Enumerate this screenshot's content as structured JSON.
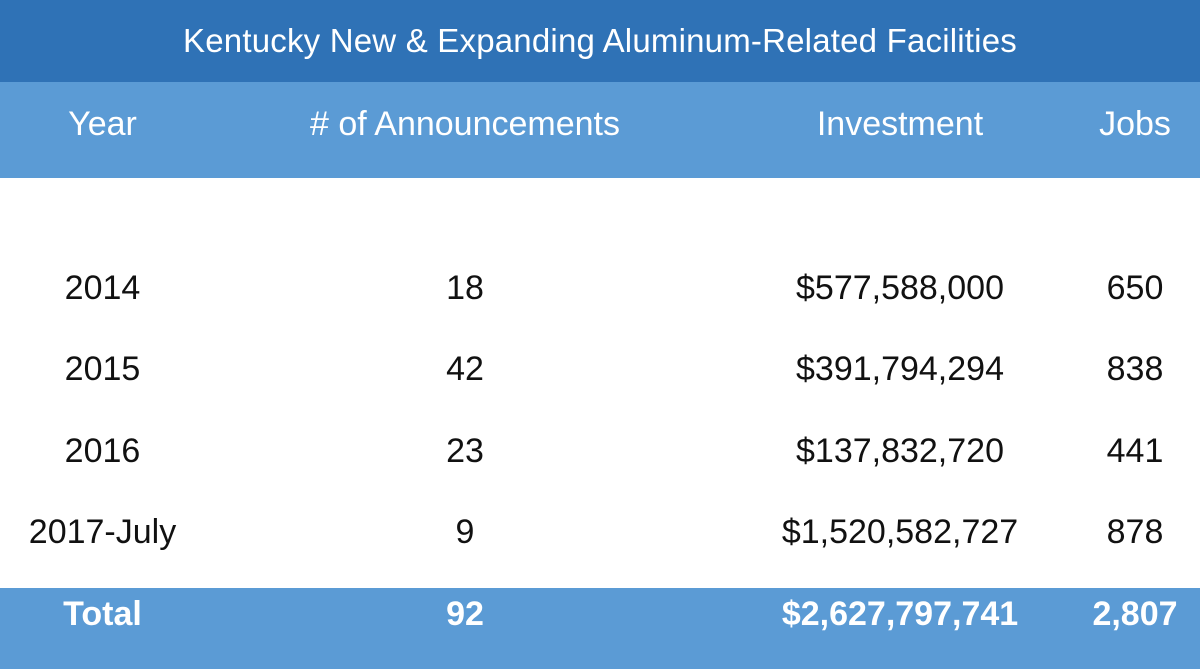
{
  "title": "Kentucky New & Expanding Aluminum-Related Facilities",
  "columns": {
    "year": "Year",
    "announcements": "# of Announcements",
    "investment": "Investment",
    "jobs": "Jobs"
  },
  "rows": [
    {
      "year": "2014",
      "announcements": "18",
      "investment": "$577,588,000",
      "jobs": "650"
    },
    {
      "year": "2015",
      "announcements": "42",
      "investment": "$391,794,294",
      "jobs": "838"
    },
    {
      "year": "2016",
      "announcements": "23",
      "investment": "$137,832,720",
      "jobs": "441"
    },
    {
      "year": "2017-July",
      "announcements": "9",
      "investment": "$1,520,582,727",
      "jobs": "878"
    }
  ],
  "total": {
    "label": "Total",
    "announcements": "92",
    "investment": "$2,627,797,741",
    "jobs": "2,807"
  },
  "colors": {
    "title_bar": "#2f72b6",
    "header_band": "#5b9bd5",
    "text_dark": "#111111",
    "text_light": "#ffffff"
  }
}
